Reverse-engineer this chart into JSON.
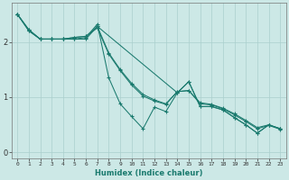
{
  "xlabel": "Humidex (Indice chaleur)",
  "bg_color": "#cce8e6",
  "grid_color": "#aacfcd",
  "line_color": "#1a7a6e",
  "xlim": [
    -0.5,
    23.5
  ],
  "ylim": [
    -0.1,
    2.7
  ],
  "yticks": [
    0,
    1,
    2
  ],
  "xticks": [
    0,
    1,
    2,
    3,
    4,
    5,
    6,
    7,
    8,
    9,
    10,
    11,
    12,
    13,
    14,
    15,
    16,
    17,
    18,
    19,
    20,
    21,
    22,
    23
  ],
  "series": [
    {
      "x": [
        0,
        1,
        2,
        3,
        4,
        5,
        6,
        7,
        14,
        15,
        16,
        17,
        18,
        19,
        20,
        21,
        22,
        23
      ],
      "y": [
        2.5,
        2.2,
        2.05,
        2.05,
        2.05,
        2.05,
        2.05,
        2.28,
        1.08,
        1.28,
        0.83,
        0.83,
        0.77,
        0.63,
        0.5,
        0.35,
        0.5,
        0.43
      ]
    },
    {
      "x": [
        0,
        1,
        2,
        3,
        4,
        5,
        6,
        7,
        8,
        9,
        10,
        11,
        12,
        13,
        14,
        15,
        16,
        17,
        18,
        19,
        20,
        21,
        22,
        23
      ],
      "y": [
        2.5,
        2.2,
        2.05,
        2.05,
        2.05,
        2.05,
        2.08,
        2.32,
        1.35,
        0.88,
        0.65,
        0.43,
        0.82,
        0.74,
        1.08,
        1.28,
        0.83,
        0.83,
        0.77,
        0.63,
        0.5,
        0.35,
        0.5,
        0.43
      ]
    },
    {
      "x": [
        0,
        1,
        2,
        3,
        4,
        5,
        6,
        7,
        8,
        9,
        10,
        11,
        12,
        13,
        14,
        15,
        16,
        17,
        18,
        19,
        20,
        21,
        22,
        23
      ],
      "y": [
        2.5,
        2.22,
        2.05,
        2.05,
        2.05,
        2.08,
        2.1,
        2.25,
        1.78,
        1.48,
        1.22,
        1.02,
        0.93,
        0.87,
        1.1,
        1.12,
        0.88,
        0.86,
        0.79,
        0.68,
        0.56,
        0.43,
        0.49,
        0.42
      ]
    },
    {
      "x": [
        0,
        1,
        2,
        3,
        4,
        5,
        6,
        7,
        8,
        9,
        10,
        11,
        12,
        13,
        14,
        15,
        16,
        17,
        18,
        19,
        20,
        21,
        22,
        23
      ],
      "y": [
        2.5,
        2.22,
        2.05,
        2.05,
        2.05,
        2.08,
        2.1,
        2.28,
        1.8,
        1.5,
        1.25,
        1.05,
        0.95,
        0.88,
        1.1,
        1.12,
        0.9,
        0.87,
        0.8,
        0.7,
        0.58,
        0.45,
        0.5,
        0.43
      ]
    }
  ]
}
